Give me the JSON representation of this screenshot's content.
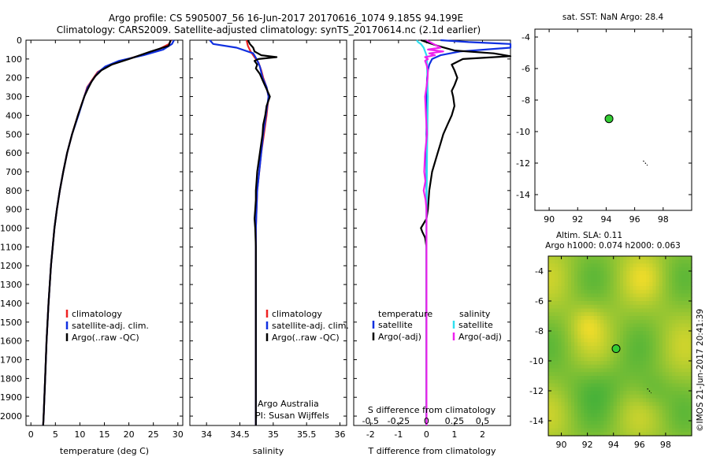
{
  "header": {
    "title_line1": "Argo profile: CS 5905007_56 16-Jun-2017 20170616_1074 9.185S 94.199E",
    "title_line2": "Climatology: CARS2009. Satellite-adjusted climatology: synTS_20170614.nc (2.1d earlier)"
  },
  "colors": {
    "climatology": "#ee2222",
    "satellite": "#1030e0",
    "argo": "#000000",
    "sal_satellite": "#30e0f0",
    "sal_argo": "#ee22ee",
    "marker": "#33cc33"
  },
  "chart_data": [
    {
      "id": "temperature",
      "type": "line",
      "xlabel": "temperature (deg C)",
      "ylabel": "",
      "xlim": [
        -1,
        31
      ],
      "ylim": [
        2050,
        0
      ],
      "xticks": [
        "0",
        "5",
        "10",
        "15",
        "20",
        "25",
        "30"
      ],
      "xtick_values": [
        0,
        5,
        10,
        15,
        20,
        25,
        30
      ],
      "yticks": [
        "0",
        "100",
        "200",
        "300",
        "400",
        "500",
        "600",
        "700",
        "800",
        "900",
        "1000",
        "1100",
        "1200",
        "1300",
        "1400",
        "1500",
        "1600",
        "1700",
        "1800",
        "1900",
        "2000"
      ],
      "ytick_values": [
        0,
        100,
        200,
        300,
        400,
        500,
        600,
        700,
        800,
        900,
        1000,
        1100,
        1200,
        1300,
        1400,
        1500,
        1600,
        1700,
        1800,
        1900,
        2000
      ],
      "legend": [
        "climatology",
        "satellite-adj. clim.",
        "Argo(..raw -QC)"
      ],
      "series": [
        {
          "name": "climatology",
          "color_key": "climatology",
          "depth": [
            0,
            20,
            50,
            80,
            110,
            140,
            170,
            200,
            250,
            300,
            400,
            500,
            600,
            700,
            800,
            900,
            1000,
            1200,
            1400,
            1600,
            1800,
            2000,
            2050
          ],
          "values": [
            28.6,
            28.2,
            26,
            22.5,
            18.5,
            15.5,
            13.6,
            12.8,
            11.5,
            10.9,
            9.6,
            8.4,
            7.4,
            6.6,
            5.9,
            5.3,
            4.8,
            4.1,
            3.6,
            3.2,
            2.9,
            2.6,
            2.5
          ]
        },
        {
          "name": "satellite-adj. clim.",
          "color_key": "satellite",
          "depth": [
            0,
            10,
            20,
            50,
            80,
            110,
            140,
            170,
            200,
            250,
            300,
            400,
            500,
            600,
            700,
            800,
            900,
            1000,
            1200,
            1400,
            1600,
            1800,
            2000,
            2050
          ],
          "values": [
            29.2,
            29,
            28.8,
            27,
            23,
            18,
            15.2,
            13.8,
            12.9,
            11.6,
            10.9,
            9.7,
            8.4,
            7.4,
            6.6,
            5.9,
            5.3,
            4.8,
            4.1,
            3.6,
            3.2,
            2.9,
            2.6,
            2.5
          ]
        },
        {
          "name": "Argo(..raw -QC)",
          "color_key": "argo",
          "depth": [
            0,
            10,
            30,
            60,
            100,
            130,
            160,
            190,
            220,
            260,
            300,
            400,
            500,
            600,
            700,
            800,
            900,
            1000,
            1200,
            1400,
            1600,
            1800,
            2000,
            2050
          ],
          "values": [
            28.5,
            28.4,
            28.1,
            24.5,
            20,
            16.5,
            14.4,
            13.2,
            12.4,
            11.6,
            10.9,
            9.6,
            8.4,
            7.4,
            6.6,
            5.9,
            5.3,
            4.8,
            4.1,
            3.6,
            3.2,
            2.9,
            2.6,
            2.5
          ]
        }
      ]
    },
    {
      "id": "salinity",
      "type": "line",
      "xlabel": "salinity",
      "ylabel": "",
      "xlim": [
        33.75,
        36.1
      ],
      "ylim": [
        2050,
        0
      ],
      "xticks": [
        "34",
        "34.5",
        "35",
        "35.5",
        "36"
      ],
      "xtick_values": [
        34,
        34.5,
        35,
        35.5,
        36
      ],
      "legend": [
        "climatology",
        "satellite-adj. clim.",
        "Argo(..raw -QC)"
      ],
      "annotation": [
        "Argo Australia",
        "PI: Susan Wijffels"
      ],
      "series": [
        {
          "name": "climatology",
          "color_key": "climatology",
          "depth": [
            0,
            30,
            60,
            90,
            120,
            160,
            200,
            250,
            300,
            400,
            500,
            600,
            800,
            1000,
            1200,
            1500,
            1800,
            2050
          ],
          "values": [
            34.6,
            34.62,
            34.66,
            34.72,
            34.78,
            34.82,
            34.85,
            34.9,
            34.93,
            34.9,
            34.86,
            34.82,
            34.76,
            34.74,
            34.74,
            34.74,
            34.74,
            34.74
          ]
        },
        {
          "name": "satellite-adj. clim.",
          "color_key": "satellite",
          "depth": [
            0,
            20,
            40,
            70,
            100,
            140,
            200,
            250,
            300,
            400,
            500,
            600,
            800,
            1000,
            1200,
            1500,
            1800,
            2050
          ],
          "values": [
            34.05,
            34.1,
            34.45,
            34.7,
            34.75,
            34.8,
            34.84,
            34.9,
            34.93,
            34.89,
            34.85,
            34.82,
            34.76,
            34.74,
            34.74,
            34.74,
            34.74,
            34.74
          ]
        },
        {
          "name": "Argo(..raw -QC)",
          "color_key": "argo",
          "depth": [
            0,
            20,
            40,
            60,
            80,
            90,
            100,
            110,
            130,
            150,
            180,
            220,
            260,
            300,
            350,
            400,
            450,
            500,
            550,
            600,
            650,
            700,
            750,
            800,
            850,
            900,
            950,
            1000,
            1100,
            1200,
            1400,
            1600,
            1800,
            2000,
            2050
          ],
          "values": [
            34.62,
            34.65,
            34.7,
            34.72,
            34.82,
            35.05,
            34.78,
            34.72,
            34.76,
            34.74,
            34.8,
            34.85,
            34.9,
            34.95,
            34.9,
            34.88,
            34.85,
            34.84,
            34.82,
            34.8,
            34.78,
            34.76,
            34.75,
            34.74,
            34.74,
            34.73,
            34.72,
            34.73,
            34.74,
            34.74,
            34.74,
            34.74,
            34.74,
            34.74,
            34.74
          ]
        }
      ]
    },
    {
      "id": "differences",
      "type": "line",
      "xlabel": "T difference from climatology",
      "xlabel_top": "S difference from climatology",
      "xlim": [
        -2.6,
        3.0
      ],
      "ylim": [
        2050,
        0
      ],
      "xticks": [
        "-2",
        "-1",
        "0",
        "1",
        "2"
      ],
      "xtick_values": [
        -2,
        -1,
        0,
        1,
        2
      ],
      "xticks_top": [
        "-0.5",
        "-0.25",
        "0",
        "0.25",
        "0.5"
      ],
      "legend_temperature": {
        "title": "temperature",
        "items": [
          "satellite",
          "Argo(-adj)"
        ]
      },
      "legend_salinity": {
        "title": "salinity",
        "items": [
          "satellite",
          "Argo(-adj)"
        ]
      },
      "series": [
        {
          "name": "satellite",
          "group": "temperature",
          "color_key": "satellite",
          "depth": [
            0,
            10,
            20,
            40,
            60,
            80,
            100,
            130,
            160,
            200,
            300,
            400,
            600,
            800,
            1000,
            1500,
            2050
          ],
          "values": [
            0.5,
            1.5,
            3.0,
            3.0,
            1.2,
            0.5,
            0.2,
            0.1,
            0.05,
            0.02,
            0.01,
            0.0,
            0.0,
            0.0,
            0.0,
            0.0,
            0.0
          ]
        },
        {
          "name": "Argo(-adj)",
          "group": "temperature",
          "color_key": "argo",
          "depth": [
            0,
            10,
            30,
            55,
            70,
            85,
            100,
            130,
            160,
            200,
            240,
            270,
            300,
            350,
            400,
            450,
            500,
            550,
            600,
            700,
            800,
            900,
            950,
            1000,
            1020,
            1050,
            1100,
            1200,
            1400,
            1600,
            1800,
            2050
          ],
          "values": [
            -0.2,
            0,
            0.4,
            1.0,
            2.4,
            3.0,
            1.3,
            0.9,
            1.0,
            1.1,
            1.0,
            0.9,
            0.95,
            1.0,
            0.9,
            0.75,
            0.6,
            0.5,
            0.4,
            0.2,
            0.1,
            0.05,
            0.0,
            -0.2,
            -0.15,
            -0.05,
            0.0,
            0.0,
            0.0,
            0.0,
            0.0,
            0.0
          ]
        },
        {
          "name": "satellite",
          "group": "salinity",
          "color_key": "sal_satellite",
          "depth": [
            0,
            10,
            20,
            40,
            60,
            80,
            110,
            150,
            200,
            300,
            400,
            600,
            800,
            1000,
            1500,
            2050
          ],
          "values": [
            -0.35,
            -0.3,
            -0.2,
            -0.1,
            -0.05,
            0.0,
            0.02,
            0.02,
            0.03,
            0.05,
            0.04,
            0.02,
            0.01,
            0.0,
            0.0,
            0.0
          ]
        },
        {
          "name": "Argo(-adj)",
          "group": "salinity",
          "color_key": "sal_argo",
          "depth": [
            0,
            20,
            40,
            50,
            60,
            70,
            80,
            90,
            100,
            110,
            130,
            160,
            200,
            250,
            300,
            400,
            500,
            600,
            700,
            750,
            800,
            850,
            900,
            1000,
            1500,
            2050
          ],
          "values": [
            0.0,
            0.25,
            0.5,
            0.05,
            0.6,
            0.1,
            0.3,
            -0.05,
            0.05,
            -0.05,
            0.0,
            0.05,
            0.04,
            0.0,
            -0.05,
            -0.02,
            0.02,
            -0.05,
            -0.08,
            -0.04,
            -0.1,
            -0.03,
            0.0,
            0.0,
            0.0,
            0.0
          ]
        }
      ]
    },
    {
      "id": "sst_map",
      "type": "scatter",
      "title": "sat. SST: NaN Argo: 28.4",
      "xlim": [
        89,
        100
      ],
      "ylim": [
        -15,
        -3.5
      ],
      "xticks": [
        "90",
        "92",
        "94",
        "96",
        "98"
      ],
      "xtick_values": [
        90,
        92,
        94,
        96,
        98
      ],
      "yticks": [
        "-4",
        "-6",
        "-8",
        "-10",
        "-12",
        "-14"
      ],
      "ytick_values": [
        -4,
        -6,
        -8,
        -10,
        -12,
        -14
      ],
      "points": [
        {
          "x": 94.2,
          "y": -9.185
        }
      ],
      "track": [
        [
          96.6,
          -11.85
        ],
        [
          96.9,
          -12.15
        ]
      ]
    },
    {
      "id": "sla_map",
      "type": "heatmap",
      "title_line1": "Altim. SLA: 0.11",
      "title_line2": "Argo h1000: 0.074 h2000: 0.063",
      "xlim": [
        89,
        100
      ],
      "ylim": [
        -15,
        -3
      ],
      "xticks": [
        "90",
        "92",
        "94",
        "96",
        "98"
      ],
      "xtick_values": [
        90,
        92,
        94,
        96,
        98
      ],
      "yticks": [
        "-4",
        "-6",
        "-8",
        "-10",
        "-12",
        "-14"
      ],
      "ytick_values": [
        -4,
        -6,
        -8,
        -10,
        -12,
        -14
      ],
      "points": [
        {
          "x": 94.2,
          "y": -9.185
        }
      ],
      "track": [
        [
          96.6,
          -11.85
        ],
        [
          96.9,
          -12.15
        ]
      ]
    }
  ],
  "footer": {
    "copyright": "©IMOS 21-Jun-2017 20:41:39"
  }
}
